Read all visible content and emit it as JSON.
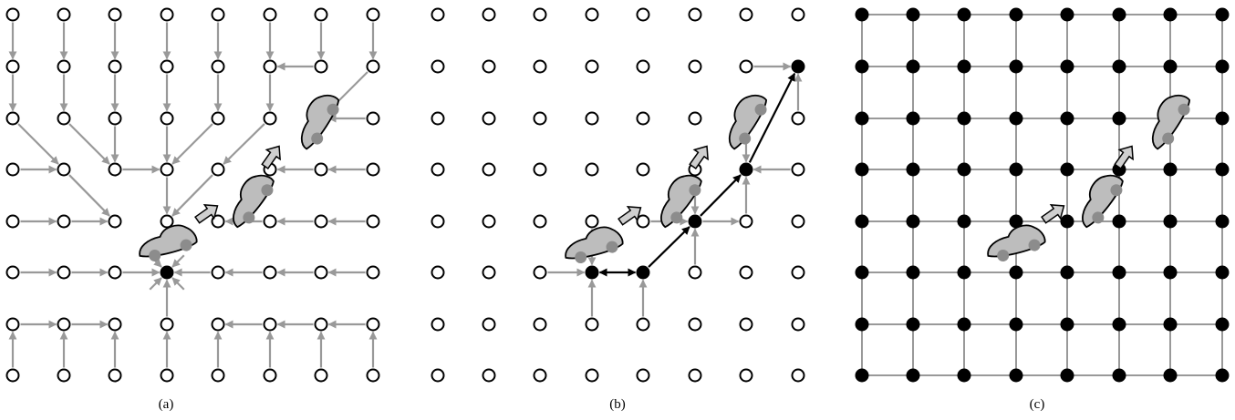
{
  "panels": [
    {
      "id": "a",
      "caption": "(a)"
    },
    {
      "id": "b",
      "caption": "(b)"
    },
    {
      "id": "c",
      "caption": "(c)"
    }
  ],
  "colors": {
    "node_stroke": "#000000",
    "node_fill_empty": "#ffffff",
    "node_fill_active": "#000000",
    "edge_gray": "#999999",
    "edge_black": "#000000",
    "car_fill": "#bdbdbd",
    "car_wheel": "#8c8c8c",
    "motion_arrow_fill": "#cfcfcf"
  },
  "icons": {
    "vehicle": "car-icon",
    "motion": "motion-arrow-icon"
  }
}
